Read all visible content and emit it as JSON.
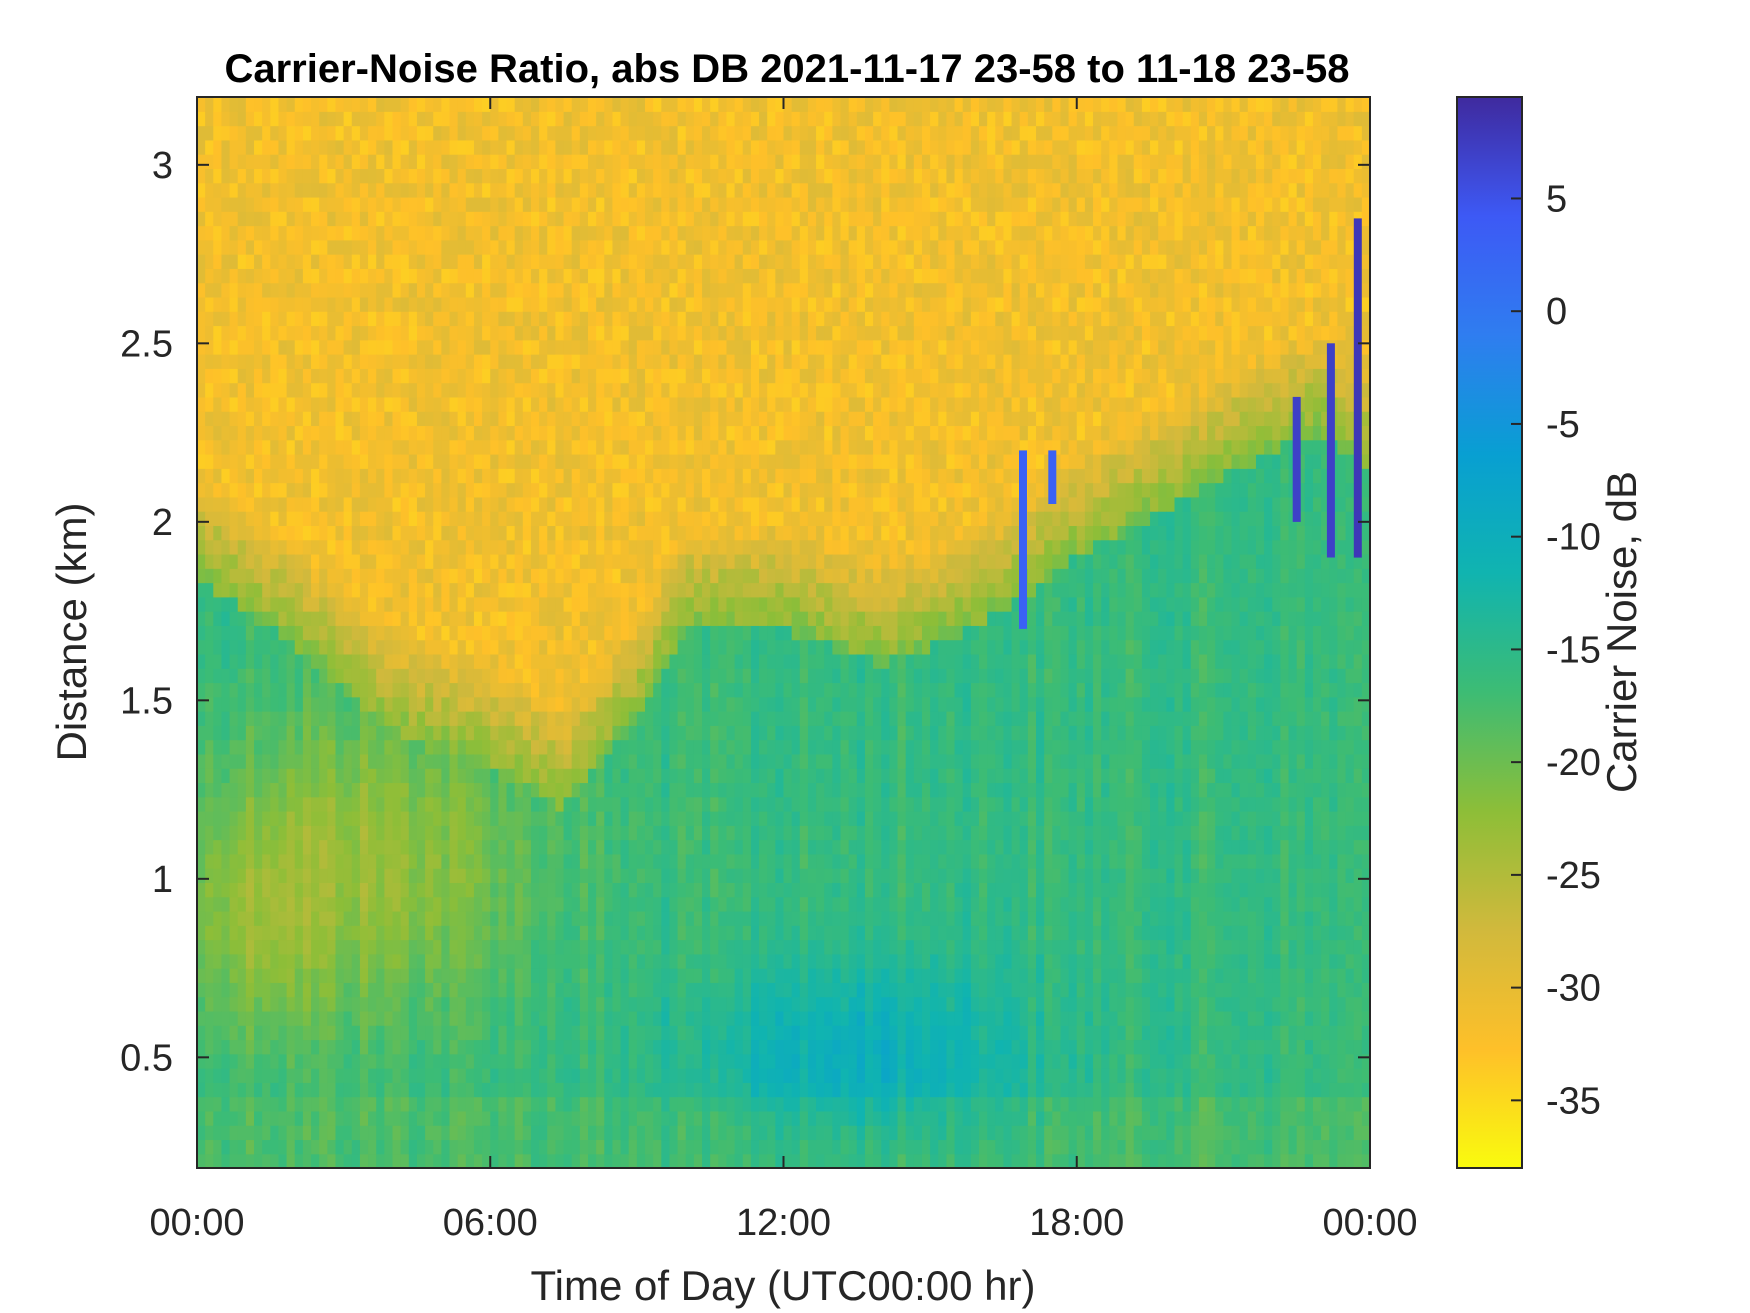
{
  "chart_data": {
    "type": "heatmap",
    "title": "Carrier-Noise Ratio, abs DB 2021-11-17 23-58 to 11-18 23-58",
    "xlabel": "Time of Day (UTC00:00 hr)",
    "ylabel": "Distance (km)",
    "x_unit": "hours",
    "xlim": [
      0,
      24
    ],
    "ylim": [
      0.19,
      3.19
    ],
    "x_ticks": [
      0,
      6,
      12,
      18,
      24
    ],
    "x_tick_labels": [
      "00:00",
      "06:00",
      "12:00",
      "18:00",
      "00:00"
    ],
    "y_ticks": [
      0.5,
      1,
      1.5,
      2,
      2.5,
      3
    ],
    "y_tick_labels": [
      "0.5",
      "1",
      "1.5",
      "2",
      "2.5",
      "3"
    ],
    "colorbar": {
      "label": "Carrier Noise, dB",
      "range": [
        -38,
        9.5
      ],
      "ticks": [
        5,
        0,
        -5,
        -10,
        -15,
        -20,
        -25,
        -30,
        -35
      ],
      "tick_labels": [
        "5",
        "0",
        "-5",
        "-10",
        "-15",
        "-20",
        "-25",
        "-30",
        "-35"
      ],
      "colormap": "parula-reversed",
      "colors": [
        "#f9fb0e",
        "#fec029",
        "#d1b93c",
        "#8dbe38",
        "#3dbc74",
        "#10b4b0",
        "#089fd2",
        "#2f7df0",
        "#3d59f5",
        "#3f2a9e"
      ]
    },
    "boundary_height_km": {
      "hours": [
        0,
        2,
        4,
        6,
        7.5,
        9,
        10,
        12,
        14,
        15,
        16.5,
        18,
        20,
        22,
        23,
        24
      ],
      "values": [
        2.0,
        1.8,
        1.55,
        1.45,
        1.35,
        1.6,
        1.85,
        1.85,
        1.75,
        1.8,
        1.9,
        2.05,
        2.2,
        2.35,
        2.4,
        2.3
      ]
    },
    "high_cnr_features": [
      {
        "hour": 16.9,
        "km_from": 1.7,
        "km_to": 2.2,
        "db": 3
      },
      {
        "hour": 17.5,
        "km_from": 2.05,
        "km_to": 2.2,
        "db": 3
      },
      {
        "hour": 22.5,
        "km_from": 2.0,
        "km_to": 2.35,
        "db": 7
      },
      {
        "hour": 23.2,
        "km_from": 1.9,
        "km_to": 2.5,
        "db": 7
      },
      {
        "hour": 23.75,
        "km_from": 1.9,
        "km_to": 2.85,
        "db": 8
      }
    ]
  }
}
